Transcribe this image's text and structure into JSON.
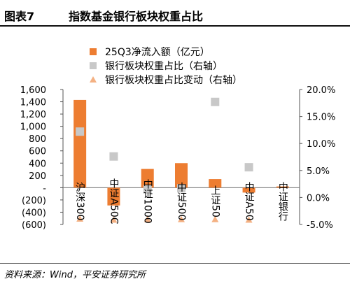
{
  "header": {
    "figure_label": "图表7",
    "title": "指数基金银行板块权重占比"
  },
  "source": "资料来源：Wind，平安证券研究所",
  "chart_data": {
    "type": "bar",
    "title": "",
    "categories": [
      "沪深300",
      "中证A50C",
      "中证1000",
      "中证500",
      "上证50",
      "中证A50",
      "中证银行"
    ],
    "series": [
      {
        "name": "25Q3净流入额（亿元）",
        "type": "bar",
        "axis": "left",
        "color": "#ED7D31",
        "values": [
          1430,
          -290,
          305,
          400,
          140,
          -80,
          20
        ]
      },
      {
        "name": "银行板块权重占比（右轴）",
        "type": "scatter",
        "marker": "square",
        "axis": "right",
        "unit": "%",
        "color": "#C8C8C8",
        "values": [
          12.2,
          7.6,
          1.5,
          1.7,
          17.7,
          5.6,
          null
        ]
      },
      {
        "name": "银行板块权重占比变动（右轴）",
        "type": "scatter",
        "marker": "triangle",
        "axis": "right",
        "unit": "%",
        "color": "#F4B183",
        "values": [
          -3.9,
          -4.1,
          -4.0,
          -4.0,
          -4.0,
          -4.1,
          null
        ]
      }
    ],
    "y_left": {
      "ylim": [
        -600,
        1600
      ],
      "ticks": [
        -600,
        -400,
        -200,
        0,
        200,
        400,
        600,
        800,
        1000,
        1200,
        1400,
        1600
      ],
      "tick_labels": [
        "(600)",
        "(400)",
        "(200)",
        "-",
        "200",
        "400",
        "600",
        "800",
        "1,000",
        "1,200",
        "1,400",
        "1,600"
      ]
    },
    "y_right": {
      "ylim": [
        -5,
        20
      ],
      "ticks": [
        -5,
        0,
        5,
        10,
        15,
        20
      ],
      "tick_labels": [
        "-5.0%",
        "0.0%",
        "5.0%",
        "10.0%",
        "15.0%",
        "20.0%"
      ]
    },
    "grid": false,
    "legend": "top-center"
  }
}
